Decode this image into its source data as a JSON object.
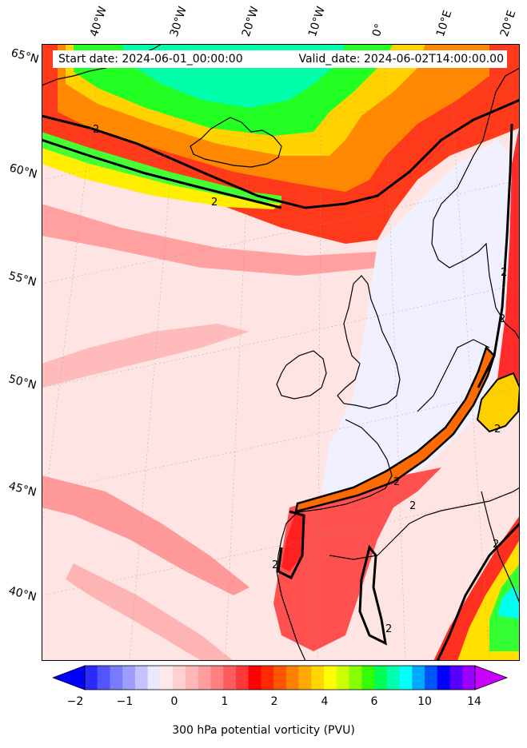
{
  "map": {
    "header": {
      "start_date": "Start date: 2024-06-01_00:00:00",
      "valid_date": "Valid_date: 2024-06-02T14:00:00.00"
    },
    "longitude_labels": [
      "40°W",
      "30°W",
      "20°W",
      "10°W",
      "0°",
      "10°E",
      "20°E"
    ],
    "latitude_labels": [
      "65°N",
      "60°N",
      "55°N",
      "50°N",
      "45°N",
      "40°N"
    ],
    "contour_level_labels": [
      "2",
      "2",
      "2",
      "2",
      "2",
      "2",
      "2",
      "2",
      "2",
      "2"
    ],
    "variable": "300 hPa potential vorticity (PVU)",
    "colorbar": {
      "tick_labels": [
        "−2",
        "−1",
        "0",
        "1",
        "2",
        "4",
        "6",
        "10",
        "14"
      ],
      "colors": [
        "#0000ff",
        "#2b2bff",
        "#5555ff",
        "#7a7aff",
        "#9e9eff",
        "#c3c3ff",
        "#e8e8ff",
        "#ffe8e8",
        "#ffd0d0",
        "#ffb8b8",
        "#ff9e9e",
        "#ff8080",
        "#ff5c5c",
        "#ff3838",
        "#ff0000",
        "#ff2a00",
        "#ff5500",
        "#ff8000",
        "#ffaa00",
        "#ffd400",
        "#ffff00",
        "#ccff00",
        "#88ff00",
        "#33ff00",
        "#00ff55",
        "#00ffaa",
        "#00ffff",
        "#00aaff",
        "#0055ff",
        "#0000ff",
        "#5500ff",
        "#9900ff",
        "#cc00ff"
      ]
    },
    "colors": {
      "land_outline": "#000000",
      "contour_2pvu": "#000000",
      "background": "#ffe6e6"
    }
  }
}
